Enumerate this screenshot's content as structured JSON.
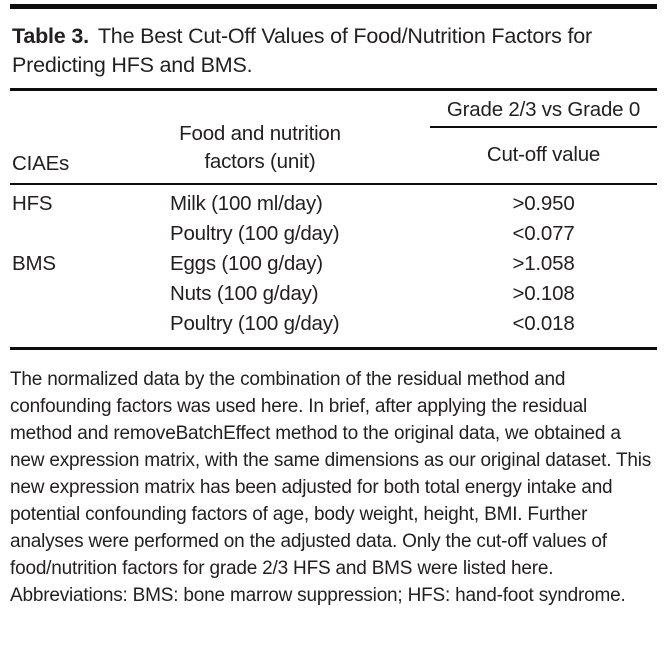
{
  "title": {
    "label": "Table 3.",
    "text": "The Best Cut-Off Values of Food/Nutrition Factors for Predicting HFS and BMS."
  },
  "table": {
    "col1_header": "CIAEs",
    "col2_header_line1": "Food and nutrition",
    "col2_header_line2": "factors (unit)",
    "span_header": "Grade 2/3 vs Grade 0",
    "col3_subheader": "Cut-off value",
    "rows": [
      {
        "ciae": "HFS",
        "factor": "Milk (100 ml/day)",
        "cutoff": ">0.950"
      },
      {
        "ciae": "",
        "factor": "Poultry (100 g/day)",
        "cutoff": "<0.077"
      },
      {
        "ciae": "BMS",
        "factor": "Eggs (100 g/day)",
        "cutoff": ">1.058"
      },
      {
        "ciae": "",
        "factor": "Nuts (100 g/day)",
        "cutoff": ">0.108"
      },
      {
        "ciae": "",
        "factor": "Poultry (100 g/day)",
        "cutoff": "<0.018"
      }
    ]
  },
  "footnotes": {
    "note": "The normalized data by the combination of the residual method and confounding factors was used here. In brief, after applying the residual method and removeBatchEffect method to the original data, we obtained a new expression matrix, with the same dimensions as our original dataset. This new expression matrix has been adjusted for both total energy intake and potential confounding factors of age, body weight, height, BMI. Further analyses were performed on the adjusted data. Only the cut-off values of food/nutrition factors for grade 2/3 HFS and BMS were listed here.",
    "abbreviations": "Abbreviations: BMS: bone marrow suppression; HFS: hand-foot syndrome."
  },
  "colors": {
    "text": "#231f20",
    "rule": "#0d0d0d",
    "background": "#ffffff"
  }
}
